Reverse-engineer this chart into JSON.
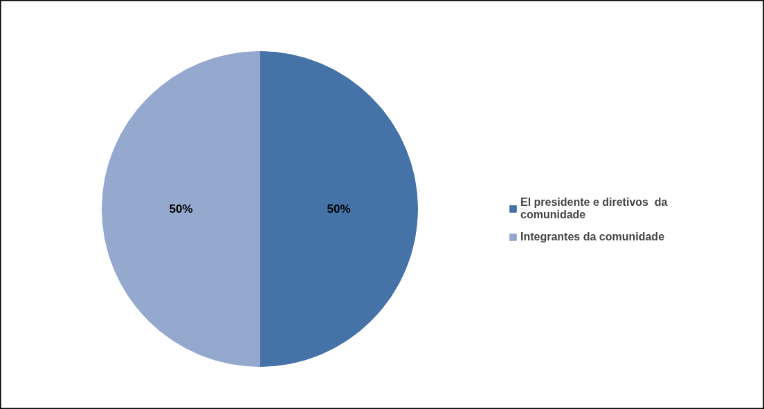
{
  "chart_data": {
    "type": "pie",
    "categories": [
      "El presidente e diretivos  da comunidade",
      "Integrantes da comunidade"
    ],
    "values": [
      50,
      50
    ],
    "colors": [
      "#4673a7",
      "#95a9cf"
    ],
    "value_labels": [
      "50%",
      "50%"
    ],
    "legend": "right"
  }
}
